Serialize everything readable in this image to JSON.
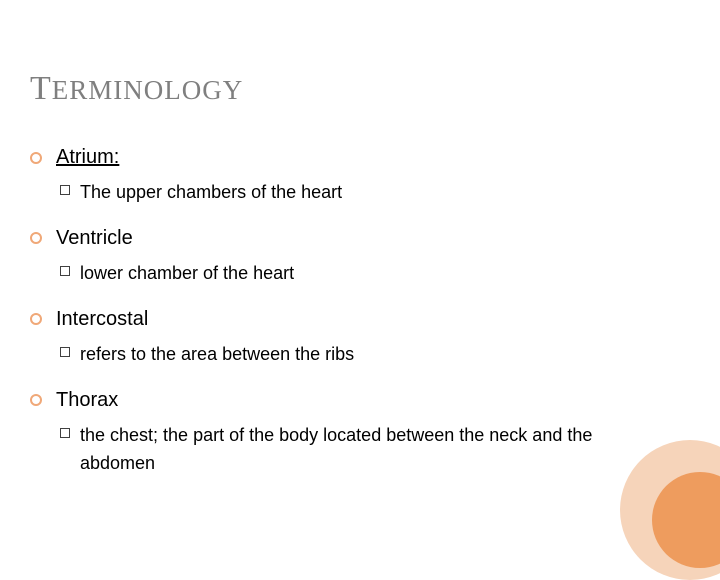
{
  "title": {
    "first": "T",
    "rest": "ERMINOLOGY"
  },
  "colors": {
    "background": "#ffffff",
    "title_color": "#7f7f7f",
    "text_color": "#000000",
    "bullet_ring": "#f0a878",
    "square_ring": "#404040",
    "corner_outer": "#f6d4ba",
    "corner_inner": "#ee9c5e"
  },
  "typography": {
    "title_font": "Georgia, 'Times New Roman', serif",
    "body_font": "Arial, sans-serif",
    "title_first_size": 34,
    "title_rest_size": 27,
    "term_size": 20,
    "def_size": 18
  },
  "terms": [
    {
      "label": "Atrium:",
      "underline": true,
      "definition": "The upper chambers of the heart"
    },
    {
      "label": "Ventricle",
      "underline": false,
      "definition": "lower chamber of the heart"
    },
    {
      "label": "Intercostal",
      "underline": false,
      "definition": "refers to the area between the ribs"
    },
    {
      "label": "Thorax",
      "underline": false,
      "definition": "the chest; the part of the body located between the neck and the abdomen"
    }
  ],
  "decor": {
    "corner_outer_diameter": 140,
    "corner_inner_diameter": 96
  }
}
